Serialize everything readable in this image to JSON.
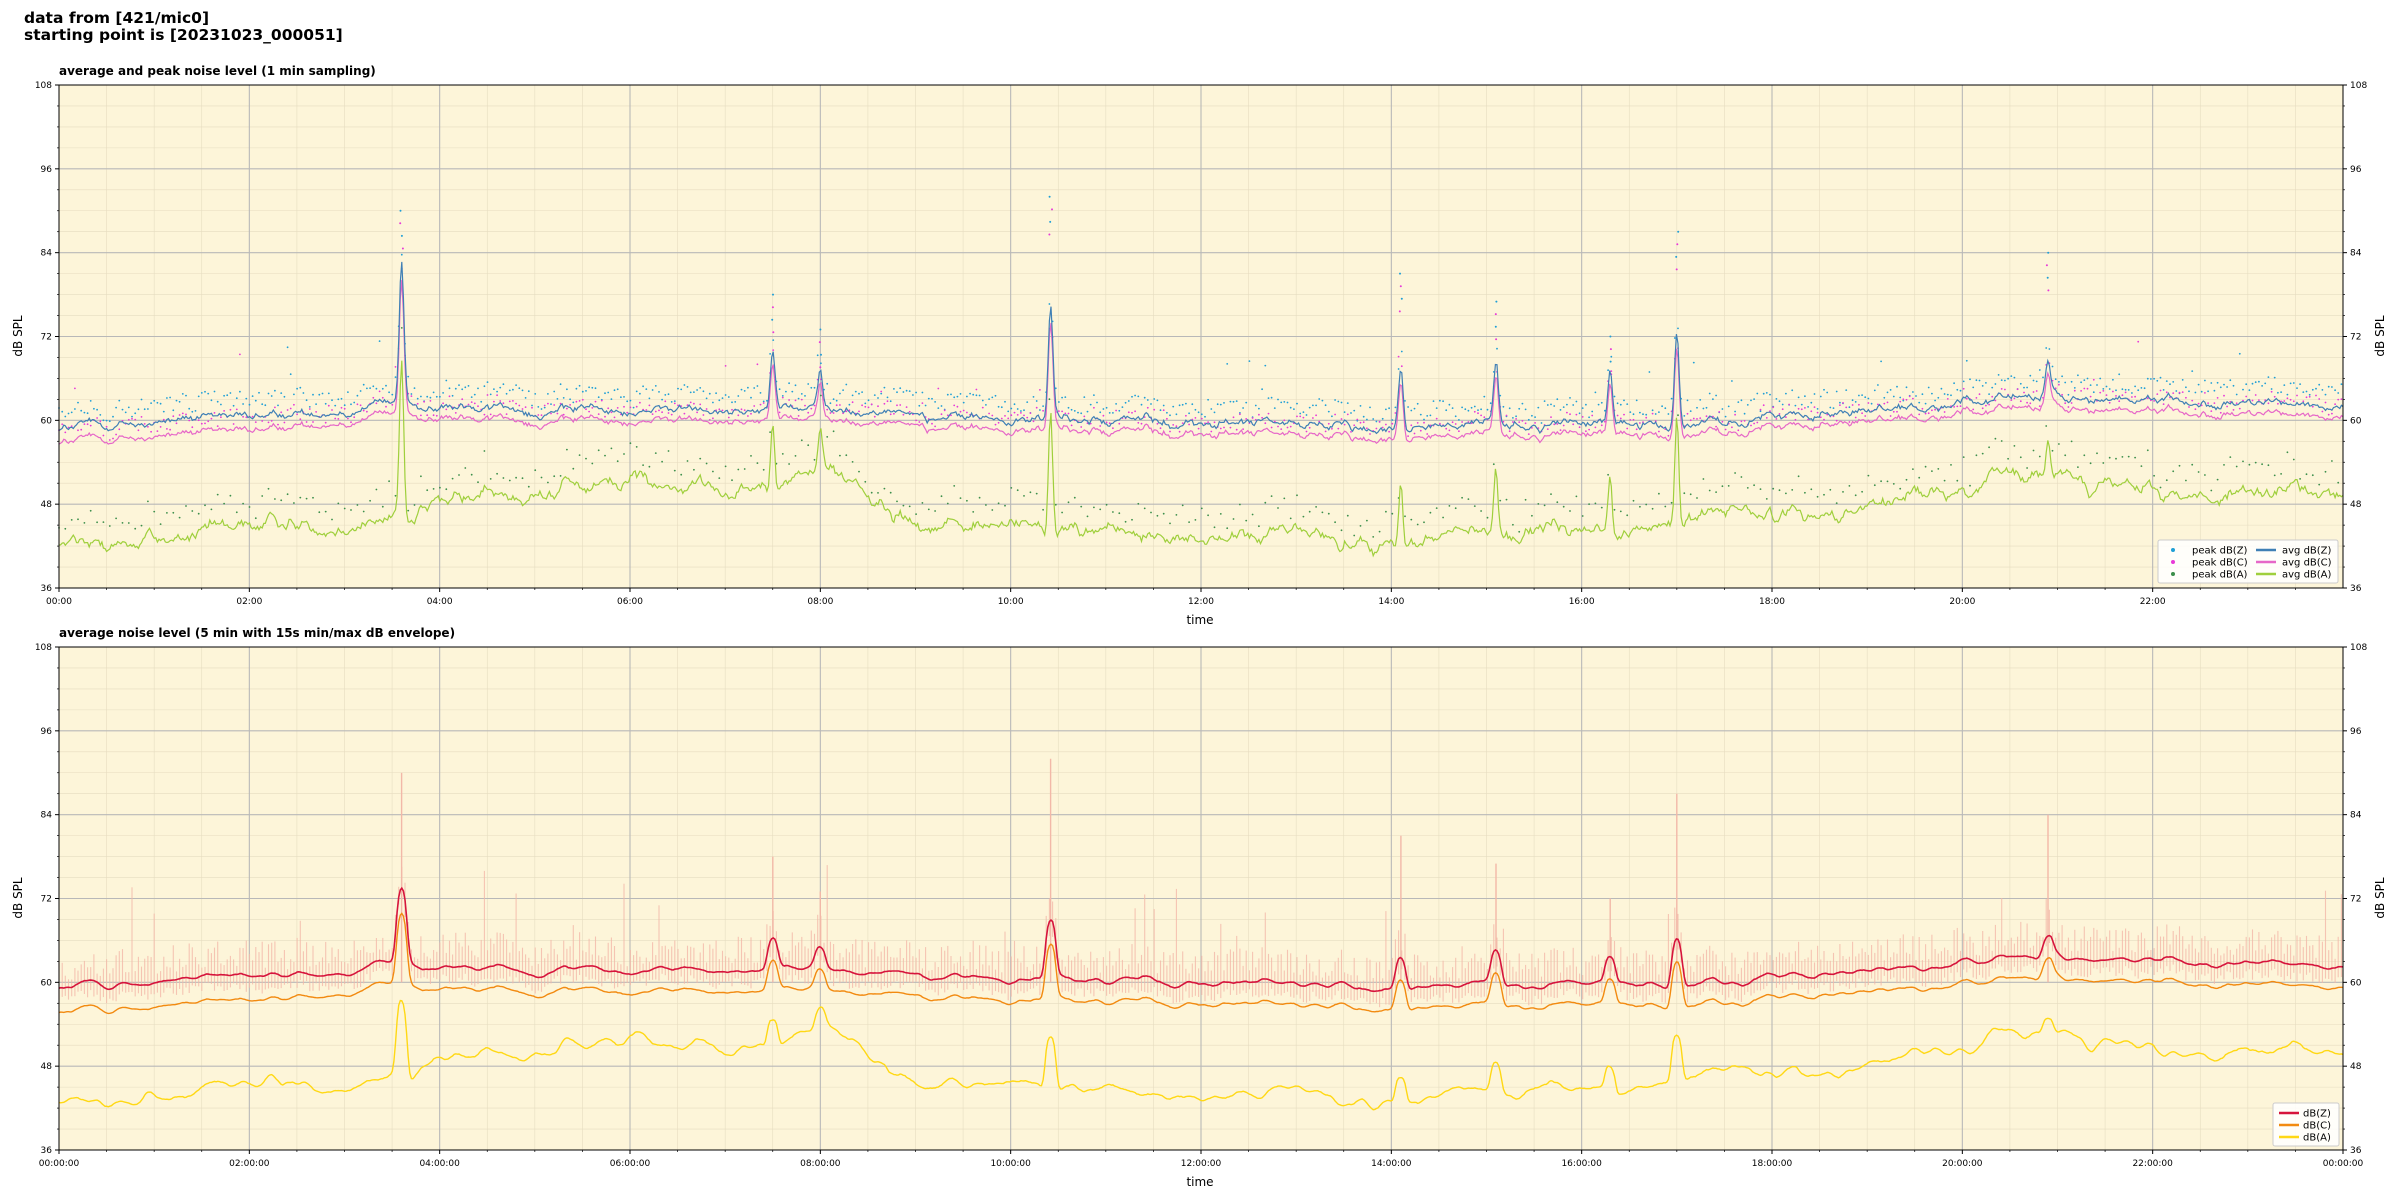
{
  "header": {
    "line1": "data from [421/mic0]",
    "line2": "starting point is [20231023_000051]"
  },
  "colors": {
    "plot_bg": "#fdf5d9",
    "peak_z": "#1f9fd6",
    "peak_c": "#e83ad8",
    "peak_a": "#3c8f4b",
    "avg_z": "#3f7fb5",
    "avg_c": "#e667c8",
    "avg_a": "#9fcf3c",
    "z": "#d6143c",
    "c": "#f28a10",
    "a": "#ffd814",
    "envelope": "#f2b8a8"
  },
  "chart_data": [
    {
      "type": "line",
      "title": "average and peak noise level (1 min sampling)",
      "xlabel": "time",
      "ylabel": "dB SPL",
      "xlim": [
        0,
        24
      ],
      "ylim": [
        36,
        108
      ],
      "grid": true,
      "x_tick_labels": [
        "00:00",
        "02:00",
        "04:00",
        "06:00",
        "08:00",
        "10:00",
        "12:00",
        "14:00",
        "16:00",
        "18:00",
        "20:00",
        "22:00"
      ],
      "y_ticks": [
        36,
        48,
        60,
        72,
        84,
        96,
        108
      ],
      "legend_position": "bottom-right",
      "legend": [
        {
          "label": "peak dB(Z)",
          "kind": "dot",
          "color_key": "peak_z"
        },
        {
          "label": "peak dB(C)",
          "kind": "dot",
          "color_key": "peak_c"
        },
        {
          "label": "peak dB(A)",
          "kind": "dot",
          "color_key": "peak_a"
        },
        {
          "label": "avg dB(Z)",
          "kind": "line",
          "color_key": "avg_z"
        },
        {
          "label": "avg dB(C)",
          "kind": "line",
          "color_key": "avg_c"
        },
        {
          "label": "avg dB(A)",
          "kind": "line",
          "color_key": "avg_a"
        }
      ],
      "baseline_keypoints": {
        "hours": [
          0,
          1,
          2,
          3,
          3.5,
          4,
          5,
          6,
          7,
          8,
          9,
          10,
          11,
          12,
          13,
          14,
          15,
          16,
          17,
          18,
          19,
          20,
          21,
          22,
          23,
          24
        ],
        "avg_z": [
          59,
          59.5,
          60.5,
          61,
          62,
          61.5,
          61.5,
          61.5,
          61.5,
          62,
          60.5,
          60,
          60,
          59.5,
          59.5,
          59,
          59.5,
          59.5,
          59.5,
          60.5,
          61.5,
          62.5,
          63.5,
          62.5,
          62,
          62.5
        ],
        "avg_c": [
          57,
          57.5,
          58.5,
          59.5,
          60.5,
          60,
          60,
          60,
          60,
          60.5,
          59,
          58.5,
          58.5,
          58,
          58,
          57.5,
          58,
          58,
          58,
          59,
          60,
          61,
          62,
          61,
          60.5,
          61
        ],
        "avg_a": [
          42,
          43,
          45,
          46,
          48,
          49,
          50,
          51,
          50,
          53,
          46,
          45,
          44,
          43,
          44,
          42,
          44,
          44,
          45,
          47,
          48,
          51,
          52,
          50,
          49,
          50
        ]
      },
      "spike_events": [
        {
          "hour": 3.6,
          "avg_z": 82,
          "peak": 90
        },
        {
          "hour": 7.5,
          "avg_z": 71,
          "peak": 78
        },
        {
          "hour": 8.0,
          "avg_z": 67,
          "peak": 73
        },
        {
          "hour": 10.42,
          "avg_z": 76,
          "peak": 92
        },
        {
          "hour": 14.1,
          "avg_z": 67,
          "peak": 81
        },
        {
          "hour": 15.1,
          "avg_z": 68,
          "peak": 77
        },
        {
          "hour": 16.3,
          "avg_z": 67,
          "peak": 72
        },
        {
          "hour": 17.0,
          "avg_z": 73,
          "peak": 87
        },
        {
          "hour": 20.9,
          "avg_z": 68,
          "peak": 84
        }
      ]
    },
    {
      "type": "line",
      "title": "average noise level (5 min with 15s min/max dB envelope)",
      "xlabel": "time",
      "ylabel": "dB SPL",
      "xlim": [
        0,
        24
      ],
      "ylim": [
        36,
        108
      ],
      "grid": true,
      "x_tick_labels": [
        "00:00:00",
        "02:00:00",
        "04:00:00",
        "06:00:00",
        "08:00:00",
        "10:00:00",
        "12:00:00",
        "14:00:00",
        "16:00:00",
        "18:00:00",
        "20:00:00",
        "22:00:00",
        "00:00:00"
      ],
      "y_ticks": [
        36,
        48,
        60,
        72,
        84,
        96,
        108
      ],
      "legend_position": "bottom-right",
      "legend": [
        {
          "label": "dB(Z)",
          "kind": "line",
          "color_key": "z"
        },
        {
          "label": "dB(C)",
          "kind": "line",
          "color_key": "c"
        },
        {
          "label": "dB(A)",
          "kind": "line",
          "color_key": "a"
        }
      ],
      "series_offsets_db": {
        "z": 0.3,
        "c": -1.2,
        "a": 0.5
      },
      "spike_peaks": {
        "z_at_3.6h": 73,
        "envelope_max": 90
      }
    }
  ]
}
